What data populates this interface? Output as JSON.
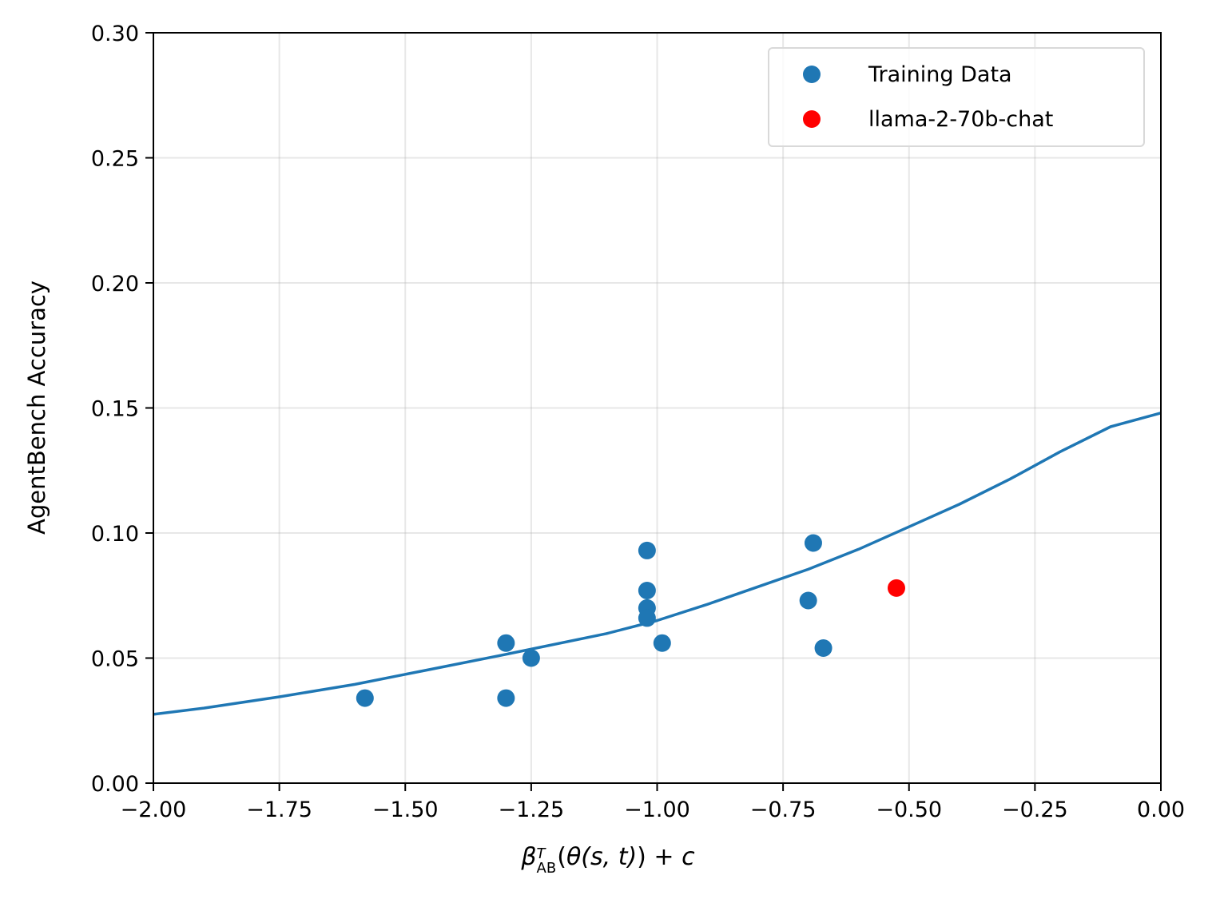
{
  "chart_data": {
    "type": "scatter",
    "title": "",
    "xlabel": "β_AB^T(θ(s, t)) + c",
    "xlabel_parts": {
      "beta": "β",
      "sup": "T",
      "sub": "AB",
      "rest_open": "(",
      "theta": "θ",
      "args": "(s, t)",
      "rest_close": ") + ",
      "c": "c"
    },
    "ylabel": "AgentBench Accuracy",
    "xlim": [
      -2.0,
      0.0
    ],
    "ylim": [
      0.0,
      0.3
    ],
    "xticks": [
      -2.0,
      -1.75,
      -1.5,
      -1.25,
      -1.0,
      -0.75,
      -0.5,
      -0.25,
      0.0
    ],
    "xtick_labels": [
      "−2.00",
      "−1.75",
      "−1.50",
      "−1.25",
      "−1.00",
      "−0.75",
      "−0.50",
      "−0.25",
      "0.00"
    ],
    "yticks": [
      0.0,
      0.05,
      0.1,
      0.15,
      0.2,
      0.25,
      0.3
    ],
    "ytick_labels": [
      "0.00",
      "0.05",
      "0.10",
      "0.15",
      "0.20",
      "0.25",
      "0.30"
    ],
    "grid": true,
    "legend_position": "top-right",
    "series": [
      {
        "name": "Training Data",
        "kind": "scatter",
        "color": "#1f77b4",
        "points": [
          {
            "x": -1.58,
            "y": 0.034
          },
          {
            "x": -1.3,
            "y": 0.056
          },
          {
            "x": -1.3,
            "y": 0.034
          },
          {
            "x": -1.25,
            "y": 0.05
          },
          {
            "x": -1.02,
            "y": 0.093
          },
          {
            "x": -1.02,
            "y": 0.077
          },
          {
            "x": -1.02,
            "y": 0.07
          },
          {
            "x": -1.02,
            "y": 0.066
          },
          {
            "x": -0.99,
            "y": 0.056
          },
          {
            "x": -0.69,
            "y": 0.096
          },
          {
            "x": -0.7,
            "y": 0.073
          },
          {
            "x": -0.67,
            "y": 0.054
          }
        ]
      },
      {
        "name": "llama-2-70b-chat",
        "kind": "scatter",
        "color": "#ff0000",
        "points": [
          {
            "x": -0.525,
            "y": 0.078
          }
        ]
      }
    ],
    "fit_curve": {
      "name": "fit",
      "color": "#1f77b4",
      "points": [
        {
          "x": -2.0,
          "y": 0.0275
        },
        {
          "x": -1.9,
          "y": 0.03
        },
        {
          "x": -1.75,
          "y": 0.0345
        },
        {
          "x": -1.6,
          "y": 0.0395
        },
        {
          "x": -1.45,
          "y": 0.0455
        },
        {
          "x": -1.3,
          "y": 0.0515
        },
        {
          "x": -1.1,
          "y": 0.0598
        },
        {
          "x": -1.0,
          "y": 0.065
        },
        {
          "x": -0.9,
          "y": 0.0715
        },
        {
          "x": -0.8,
          "y": 0.0785
        },
        {
          "x": -0.7,
          "y": 0.0855
        },
        {
          "x": -0.6,
          "y": 0.0935
        },
        {
          "x": -0.5,
          "y": 0.1025
        },
        {
          "x": -0.4,
          "y": 0.1115
        },
        {
          "x": -0.3,
          "y": 0.1215
        },
        {
          "x": -0.2,
          "y": 0.1325
        },
        {
          "x": -0.1,
          "y": 0.1425
        },
        {
          "x": 0.0,
          "y": 0.148
        }
      ]
    }
  }
}
